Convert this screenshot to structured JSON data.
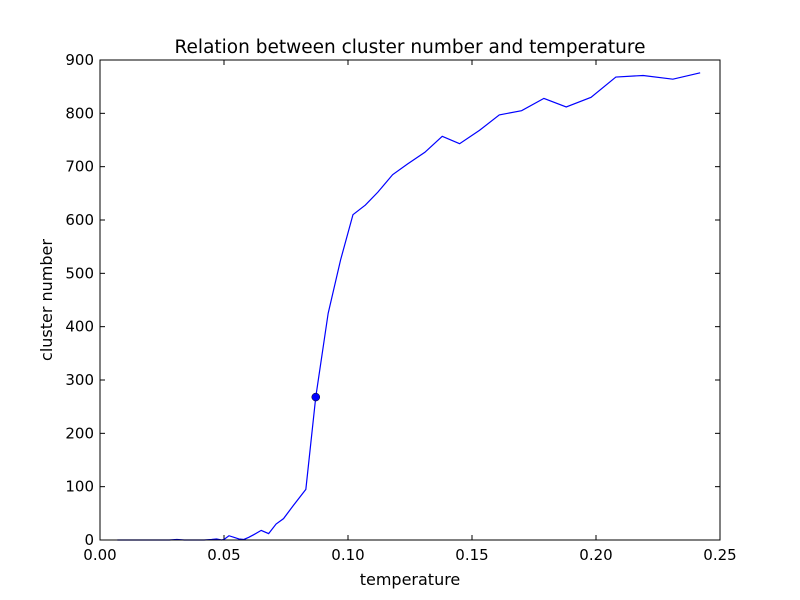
{
  "chart_data": {
    "type": "line",
    "title": "Relation between cluster number and temperature",
    "xlabel": "temperature",
    "ylabel": "cluster number",
    "xlim": [
      0.0,
      0.25
    ],
    "ylim": [
      0,
      900
    ],
    "xticks": [
      0.0,
      0.05,
      0.1,
      0.15,
      0.2,
      0.25
    ],
    "xtick_labels": [
      "0.00",
      "0.05",
      "0.10",
      "0.15",
      "0.20",
      "0.25"
    ],
    "yticks": [
      0,
      100,
      200,
      300,
      400,
      500,
      600,
      700,
      800,
      900
    ],
    "ytick_labels": [
      "0",
      "100",
      "200",
      "300",
      "400",
      "500",
      "600",
      "700",
      "800",
      "900"
    ],
    "grid": false,
    "line_color": "#0000ff",
    "series": [
      {
        "x": [
          0.007,
          0.012,
          0.018,
          0.024,
          0.028,
          0.031,
          0.034,
          0.038,
          0.042,
          0.045,
          0.047,
          0.049,
          0.05,
          0.052,
          0.054,
          0.056,
          0.058,
          0.06,
          0.062,
          0.065,
          0.068,
          0.071,
          0.074,
          0.078,
          0.083,
          0.087,
          0.092,
          0.097,
          0.102,
          0.107,
          0.112,
          0.118,
          0.124,
          0.131,
          0.138,
          0.145,
          0.153,
          0.161,
          0.17,
          0.179,
          0.188,
          0.198,
          0.208,
          0.219,
          0.231,
          0.242
        ],
        "y": [
          0,
          0,
          0,
          0,
          0,
          1,
          0,
          0,
          0,
          1,
          2,
          0,
          1,
          8,
          5,
          2,
          1,
          5,
          10,
          18,
          12,
          30,
          40,
          65,
          95,
          268,
          425,
          525,
          610,
          628,
          652,
          685,
          705,
          727,
          757,
          743,
          768,
          797,
          805,
          828,
          812,
          830,
          868,
          871,
          864,
          876
        ]
      }
    ],
    "markers": [
      {
        "x": 0.087,
        "y": 268
      }
    ]
  }
}
